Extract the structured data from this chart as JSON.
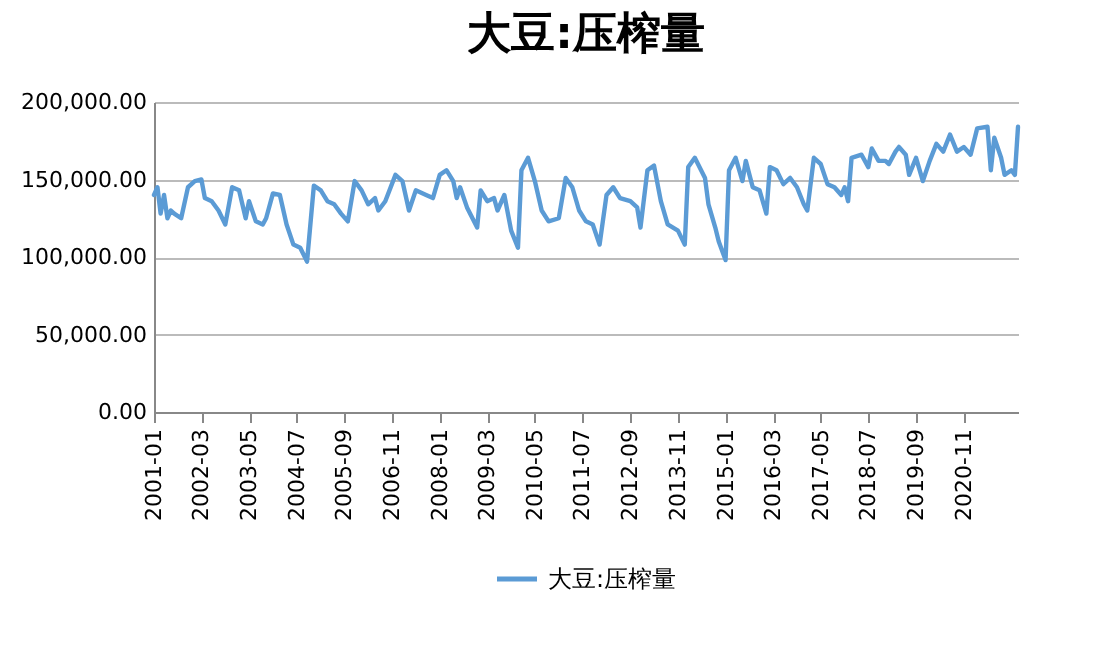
{
  "chart_data": {
    "type": "line",
    "title": "大豆:压榨量",
    "x": [
      "2001-01",
      "2001-02",
      "2001-03",
      "2001-04",
      "2001-05",
      "2001-06",
      "2001-07",
      "2001-09",
      "2001-11",
      "2002-01",
      "2002-03",
      "2002-04",
      "2002-06",
      "2002-08",
      "2002-10",
      "2002-12",
      "2003-02",
      "2003-04",
      "2003-05",
      "2003-07",
      "2003-09",
      "2003-10",
      "2003-12",
      "2004-02",
      "2004-04",
      "2004-06",
      "2004-08",
      "2004-10",
      "2004-12",
      "2005-02",
      "2005-04",
      "2005-06",
      "2005-08",
      "2005-10",
      "2005-12",
      "2006-02",
      "2006-04",
      "2006-06",
      "2006-07",
      "2006-09",
      "2006-12",
      "2007-02",
      "2007-04",
      "2007-06",
      "2007-09",
      "2007-11",
      "2008-01",
      "2008-03",
      "2008-05",
      "2008-06",
      "2008-07",
      "2008-09",
      "2008-12",
      "2009-01",
      "2009-03",
      "2009-05",
      "2009-06",
      "2009-08",
      "2009-10",
      "2009-12",
      "2010-01",
      "2010-03",
      "2010-05",
      "2010-07",
      "2010-09",
      "2010-12",
      "2011-02",
      "2011-04",
      "2011-06",
      "2011-08",
      "2011-10",
      "2011-12",
      "2012-02",
      "2012-04",
      "2012-06",
      "2012-09",
      "2012-11",
      "2012-12",
      "2013-02",
      "2013-04",
      "2013-06",
      "2013-08",
      "2013-11",
      "2014-01",
      "2014-02",
      "2014-04",
      "2014-07",
      "2014-08",
      "2014-10",
      "2014-11",
      "2015-01",
      "2015-02",
      "2015-04",
      "2015-06",
      "2015-07",
      "2015-09",
      "2015-11",
      "2016-01",
      "2016-02",
      "2016-04",
      "2016-06",
      "2016-08",
      "2016-10",
      "2016-12",
      "2017-01",
      "2017-03",
      "2017-05",
      "2017-07",
      "2017-09",
      "2017-11",
      "2017-12",
      "2018-01",
      "2018-02",
      "2018-05",
      "2018-07",
      "2018-08",
      "2018-10",
      "2018-12",
      "2019-01",
      "2019-03",
      "2019-04",
      "2019-06",
      "2019-07",
      "2019-09",
      "2019-11",
      "2020-01",
      "2020-03",
      "2020-05",
      "2020-07",
      "2020-09",
      "2020-11",
      "2021-01",
      "2021-03",
      "2021-06",
      "2021-07",
      "2021-08",
      "2021-10",
      "2021-11",
      "2022-01",
      "2022-02",
      "2022-03"
    ],
    "series": [
      {
        "name": "大豆:压榨量",
        "color": "#5b9bd5",
        "values": [
          140000,
          145000,
          128000,
          140000,
          125000,
          130000,
          128000,
          125000,
          145000,
          149000,
          150000,
          138000,
          136000,
          130000,
          121000,
          145000,
          143000,
          125000,
          136000,
          123000,
          121000,
          125000,
          141000,
          140000,
          121000,
          108000,
          106000,
          97000,
          146000,
          143000,
          136000,
          134000,
          128000,
          123000,
          149000,
          143000,
          134000,
          138000,
          130000,
          136000,
          153000,
          149000,
          130000,
          143000,
          140000,
          138000,
          153000,
          156000,
          149000,
          138000,
          145000,
          132000,
          119000,
          143000,
          136000,
          138000,
          130000,
          140000,
          117000,
          106000,
          156000,
          164000,
          149000,
          130000,
          123000,
          125000,
          151000,
          145000,
          130000,
          123000,
          121000,
          108000,
          140000,
          145000,
          138000,
          136000,
          132000,
          119000,
          156000,
          159000,
          136000,
          121000,
          117000,
          108000,
          158000,
          164000,
          151000,
          134000,
          119000,
          110000,
          98000,
          156000,
          164000,
          149000,
          162000,
          145000,
          143000,
          128000,
          158000,
          156000,
          147000,
          151000,
          145000,
          134000,
          130000,
          164000,
          160000,
          147000,
          145000,
          140000,
          145000,
          136000,
          164000,
          166000,
          158000,
          170000,
          162000,
          162000,
          160000,
          168000,
          171000,
          166000,
          153000,
          164000,
          149000,
          162000,
          173000,
          168000,
          179000,
          168000,
          171000,
          166000,
          183000,
          184000,
          156000,
          177000,
          164000,
          153000,
          156000,
          153000,
          184000
        ]
      }
    ],
    "xlim": [
      "2001-01",
      "2022-03"
    ],
    "xticks": [
      "2001-01",
      "2002-03",
      "2003-05",
      "2004-07",
      "2005-09",
      "2006-11",
      "2008-01",
      "2009-03",
      "2010-05",
      "2011-07",
      "2012-09",
      "2013-11",
      "2015-01",
      "2016-03",
      "2017-05",
      "2018-07",
      "2019-09",
      "2020-11"
    ],
    "ylim": [
      0,
      200000
    ],
    "yticks": [
      {
        "value": 0,
        "label": "0.00"
      },
      {
        "value": 50000,
        "label": "50,000.00"
      },
      {
        "value": 100000,
        "label": "100,000.00"
      },
      {
        "value": 150000,
        "label": "150,000.00"
      },
      {
        "value": 200000,
        "label": "200,000.00"
      }
    ],
    "grid": "y",
    "legend": "bottom"
  }
}
